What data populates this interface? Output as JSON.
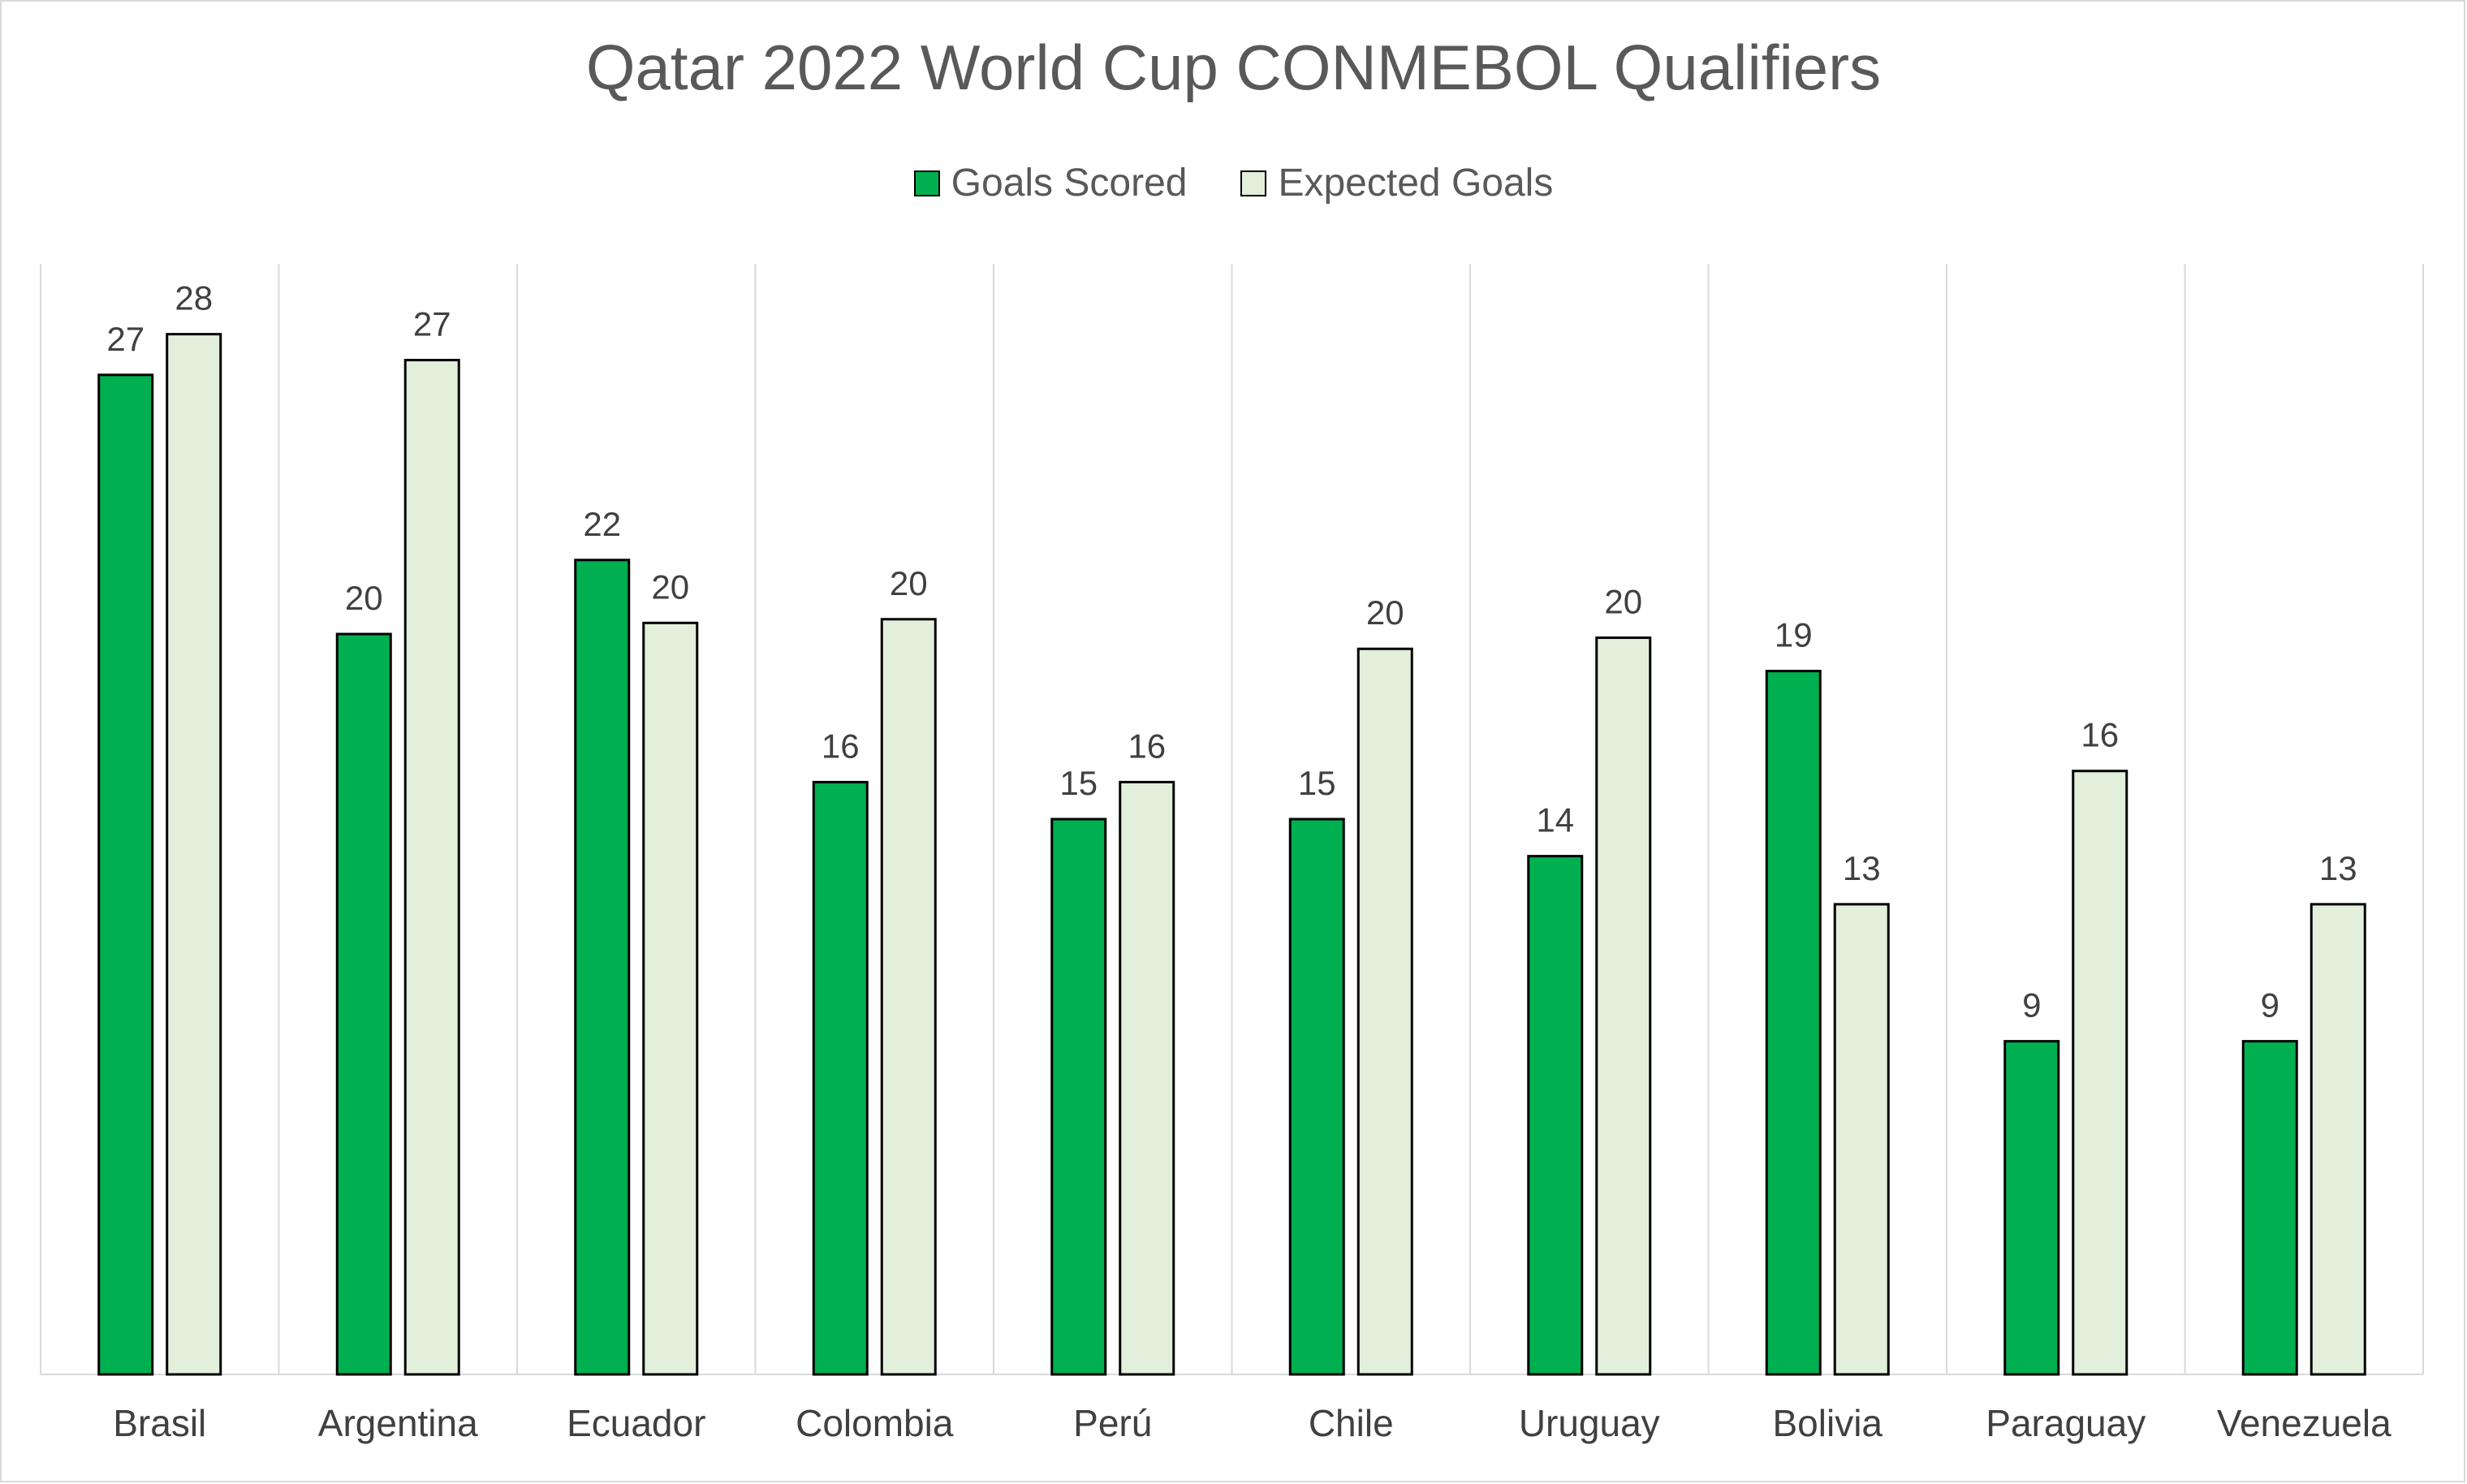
{
  "chart_data": {
    "type": "bar",
    "title": "Qatar 2022 World Cup CONMEBOL Qualifiers",
    "categories": [
      "Brasil",
      "Argentina",
      "Ecuador",
      "Colombia",
      "Perú",
      "Chile",
      "Uruguay",
      "Bolivia",
      "Paraguay",
      "Venezuela"
    ],
    "series": [
      {
        "name": "Goals Scored",
        "color": "#00b050",
        "values": [
          27,
          20,
          22,
          16,
          15,
          15,
          14,
          19,
          9,
          9
        ],
        "labels": [
          "27",
          "20",
          "22",
          "16",
          "15",
          "15",
          "14",
          "19",
          "9",
          "9"
        ]
      },
      {
        "name": "Expected Goals",
        "color": "#e2efda",
        "values": [
          28.1,
          27.4,
          20.3,
          20.4,
          16.0,
          19.6,
          19.9,
          12.7,
          16.3,
          12.7
        ],
        "labels": [
          "28",
          "27",
          "20",
          "20",
          "16",
          "20",
          "20",
          "13",
          "16",
          "13"
        ]
      }
    ],
    "ylim": [
      0,
      30
    ],
    "xlabel": "",
    "ylabel": "",
    "grid": "vertical category separators",
    "legend_position": "top-center"
  }
}
